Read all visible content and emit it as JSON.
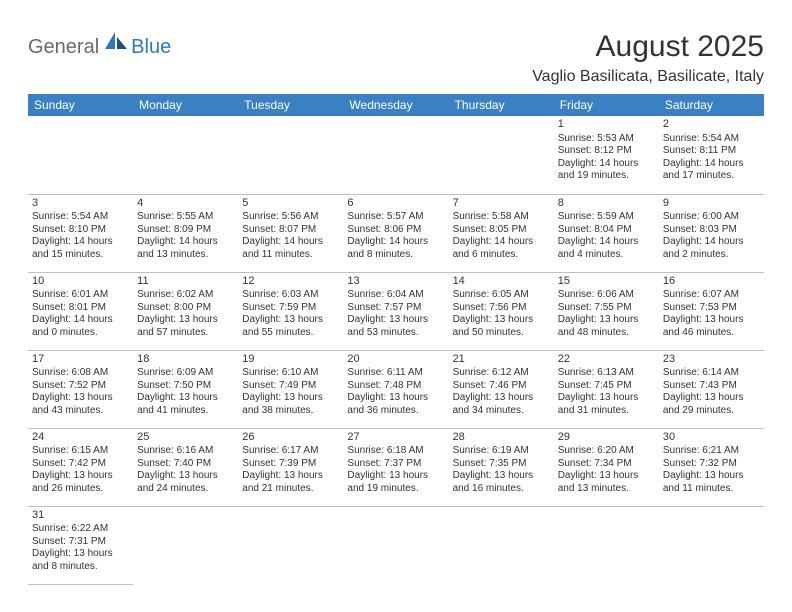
{
  "logo": {
    "general": "General",
    "blue": "Blue"
  },
  "title": "August 2025",
  "location": "Vaglio Basilicata, Basilicate, Italy",
  "header_bg": "#3a81c3",
  "header_text": "#ffffff",
  "day_border": "#3a81c3",
  "light_border": "#bfbfbf",
  "weekdays": [
    "Sunday",
    "Monday",
    "Tuesday",
    "Wednesday",
    "Thursday",
    "Friday",
    "Saturday"
  ],
  "weeks": [
    [
      null,
      null,
      null,
      null,
      null,
      {
        "n": "1",
        "sr": "Sunrise: 5:53 AM",
        "ss": "Sunset: 8:12 PM",
        "dl": "Daylight: 14 hours and 19 minutes."
      },
      {
        "n": "2",
        "sr": "Sunrise: 5:54 AM",
        "ss": "Sunset: 8:11 PM",
        "dl": "Daylight: 14 hours and 17 minutes."
      }
    ],
    [
      {
        "n": "3",
        "sr": "Sunrise: 5:54 AM",
        "ss": "Sunset: 8:10 PM",
        "dl": "Daylight: 14 hours and 15 minutes."
      },
      {
        "n": "4",
        "sr": "Sunrise: 5:55 AM",
        "ss": "Sunset: 8:09 PM",
        "dl": "Daylight: 14 hours and 13 minutes."
      },
      {
        "n": "5",
        "sr": "Sunrise: 5:56 AM",
        "ss": "Sunset: 8:07 PM",
        "dl": "Daylight: 14 hours and 11 minutes."
      },
      {
        "n": "6",
        "sr": "Sunrise: 5:57 AM",
        "ss": "Sunset: 8:06 PM",
        "dl": "Daylight: 14 hours and 8 minutes."
      },
      {
        "n": "7",
        "sr": "Sunrise: 5:58 AM",
        "ss": "Sunset: 8:05 PM",
        "dl": "Daylight: 14 hours and 6 minutes."
      },
      {
        "n": "8",
        "sr": "Sunrise: 5:59 AM",
        "ss": "Sunset: 8:04 PM",
        "dl": "Daylight: 14 hours and 4 minutes."
      },
      {
        "n": "9",
        "sr": "Sunrise: 6:00 AM",
        "ss": "Sunset: 8:03 PM",
        "dl": "Daylight: 14 hours and 2 minutes."
      }
    ],
    [
      {
        "n": "10",
        "sr": "Sunrise: 6:01 AM",
        "ss": "Sunset: 8:01 PM",
        "dl": "Daylight: 14 hours and 0 minutes."
      },
      {
        "n": "11",
        "sr": "Sunrise: 6:02 AM",
        "ss": "Sunset: 8:00 PM",
        "dl": "Daylight: 13 hours and 57 minutes."
      },
      {
        "n": "12",
        "sr": "Sunrise: 6:03 AM",
        "ss": "Sunset: 7:59 PM",
        "dl": "Daylight: 13 hours and 55 minutes."
      },
      {
        "n": "13",
        "sr": "Sunrise: 6:04 AM",
        "ss": "Sunset: 7:57 PM",
        "dl": "Daylight: 13 hours and 53 minutes."
      },
      {
        "n": "14",
        "sr": "Sunrise: 6:05 AM",
        "ss": "Sunset: 7:56 PM",
        "dl": "Daylight: 13 hours and 50 minutes."
      },
      {
        "n": "15",
        "sr": "Sunrise: 6:06 AM",
        "ss": "Sunset: 7:55 PM",
        "dl": "Daylight: 13 hours and 48 minutes."
      },
      {
        "n": "16",
        "sr": "Sunrise: 6:07 AM",
        "ss": "Sunset: 7:53 PM",
        "dl": "Daylight: 13 hours and 46 minutes."
      }
    ],
    [
      {
        "n": "17",
        "sr": "Sunrise: 6:08 AM",
        "ss": "Sunset: 7:52 PM",
        "dl": "Daylight: 13 hours and 43 minutes."
      },
      {
        "n": "18",
        "sr": "Sunrise: 6:09 AM",
        "ss": "Sunset: 7:50 PM",
        "dl": "Daylight: 13 hours and 41 minutes."
      },
      {
        "n": "19",
        "sr": "Sunrise: 6:10 AM",
        "ss": "Sunset: 7:49 PM",
        "dl": "Daylight: 13 hours and 38 minutes."
      },
      {
        "n": "20",
        "sr": "Sunrise: 6:11 AM",
        "ss": "Sunset: 7:48 PM",
        "dl": "Daylight: 13 hours and 36 minutes."
      },
      {
        "n": "21",
        "sr": "Sunrise: 6:12 AM",
        "ss": "Sunset: 7:46 PM",
        "dl": "Daylight: 13 hours and 34 minutes."
      },
      {
        "n": "22",
        "sr": "Sunrise: 6:13 AM",
        "ss": "Sunset: 7:45 PM",
        "dl": "Daylight: 13 hours and 31 minutes."
      },
      {
        "n": "23",
        "sr": "Sunrise: 6:14 AM",
        "ss": "Sunset: 7:43 PM",
        "dl": "Daylight: 13 hours and 29 minutes."
      }
    ],
    [
      {
        "n": "24",
        "sr": "Sunrise: 6:15 AM",
        "ss": "Sunset: 7:42 PM",
        "dl": "Daylight: 13 hours and 26 minutes."
      },
      {
        "n": "25",
        "sr": "Sunrise: 6:16 AM",
        "ss": "Sunset: 7:40 PM",
        "dl": "Daylight: 13 hours and 24 minutes."
      },
      {
        "n": "26",
        "sr": "Sunrise: 6:17 AM",
        "ss": "Sunset: 7:39 PM",
        "dl": "Daylight: 13 hours and 21 minutes."
      },
      {
        "n": "27",
        "sr": "Sunrise: 6:18 AM",
        "ss": "Sunset: 7:37 PM",
        "dl": "Daylight: 13 hours and 19 minutes."
      },
      {
        "n": "28",
        "sr": "Sunrise: 6:19 AM",
        "ss": "Sunset: 7:35 PM",
        "dl": "Daylight: 13 hours and 16 minutes."
      },
      {
        "n": "29",
        "sr": "Sunrise: 6:20 AM",
        "ss": "Sunset: 7:34 PM",
        "dl": "Daylight: 13 hours and 13 minutes."
      },
      {
        "n": "30",
        "sr": "Sunrise: 6:21 AM",
        "ss": "Sunset: 7:32 PM",
        "dl": "Daylight: 13 hours and 11 minutes."
      }
    ],
    [
      {
        "n": "31",
        "sr": "Sunrise: 6:22 AM",
        "ss": "Sunset: 7:31 PM",
        "dl": "Daylight: 13 hours and 8 minutes."
      },
      null,
      null,
      null,
      null,
      null,
      null
    ]
  ]
}
